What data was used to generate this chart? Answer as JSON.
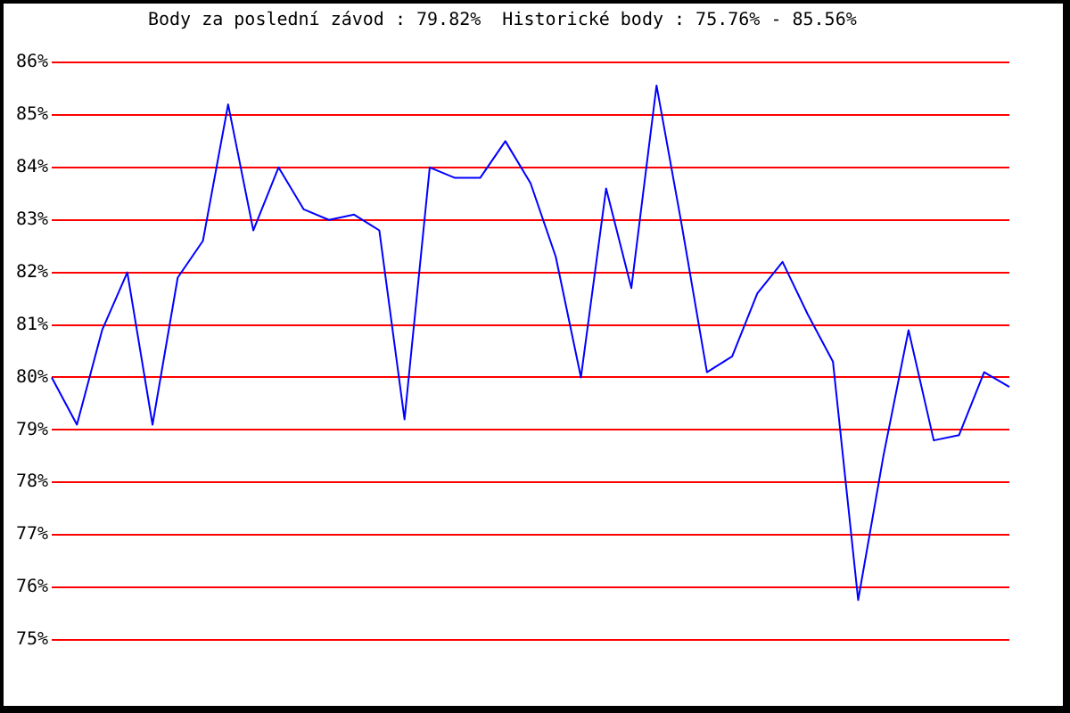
{
  "chart_data": {
    "type": "line",
    "title": "Body za poslední závod : 79.82%  Historické body : 75.76% - 85.56%",
    "categories": [
      null,
      null,
      null,
      null,
      null,
      null,
      null,
      null,
      null,
      null,
      null,
      null,
      null,
      null,
      null,
      null,
      null,
      null,
      null,
      null,
      null,
      null,
      null,
      null,
      null,
      null,
      null,
      null,
      null,
      null,
      null,
      null,
      null,
      null,
      null,
      null,
      null,
      null,
      null
    ],
    "series": [
      {
        "color": "#0000ff",
        "values": [
          80.0,
          79.1,
          80.9,
          82.0,
          79.1,
          81.9,
          82.6,
          85.2,
          82.8,
          84.0,
          83.2,
          83.0,
          83.1,
          82.8,
          79.2,
          84.0,
          83.8,
          83.8,
          84.5,
          83.7,
          82.3,
          80.0,
          83.6,
          81.7,
          85.56,
          82.9,
          80.1,
          80.4,
          81.6,
          82.2,
          81.2,
          80.3,
          75.76,
          78.5,
          80.9,
          78.8,
          78.9,
          80.1,
          79.82
        ]
      }
    ],
    "ylim": [
      75,
      86
    ],
    "yticks": [
      {
        "value": 75,
        "label": "75%"
      },
      {
        "value": 76,
        "label": "76%"
      },
      {
        "value": 77,
        "label": "77%"
      },
      {
        "value": 78,
        "label": "78%"
      },
      {
        "value": 79,
        "label": "79%"
      },
      {
        "value": 80,
        "label": "80%"
      },
      {
        "value": 81,
        "label": "81%"
      },
      {
        "value": 82,
        "label": "82%"
      },
      {
        "value": 83,
        "label": "83%"
      },
      {
        "value": 84,
        "label": "84%"
      },
      {
        "value": 85,
        "label": "85%"
      },
      {
        "value": 86,
        "label": "86%"
      }
    ],
    "grid": "y",
    "marker": "none",
    "line_style": "solid"
  }
}
